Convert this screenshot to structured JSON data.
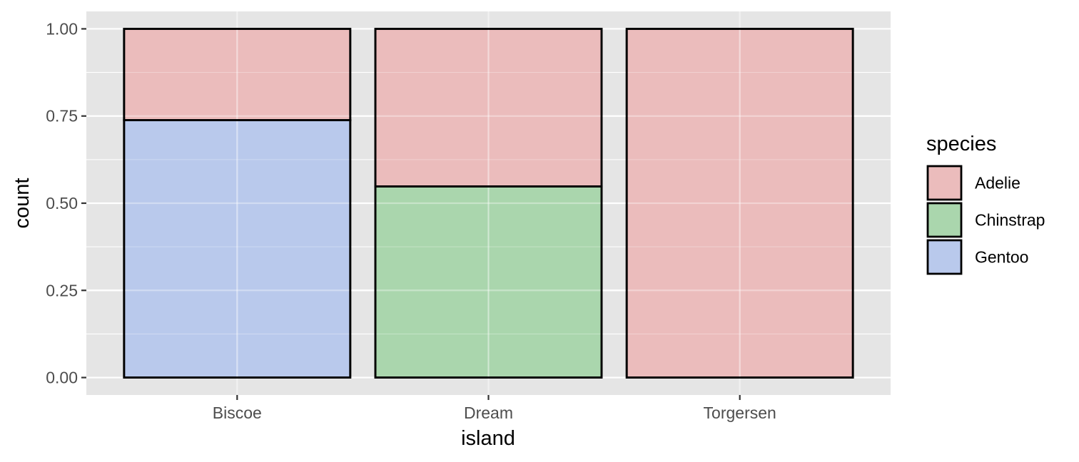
{
  "chart_data": {
    "type": "bar",
    "stacked": true,
    "position": "fill",
    "categories": [
      "Biscoe",
      "Dream",
      "Torgersen"
    ],
    "series": [
      {
        "name": "Adelie",
        "values": [
          0.262,
          0.452,
          1.0
        ]
      },
      {
        "name": "Chinstrap",
        "values": [
          0.0,
          0.548,
          0.0
        ]
      },
      {
        "name": "Gentoo",
        "values": [
          0.738,
          0.0,
          0.0
        ]
      }
    ],
    "xlabel": "island",
    "ylabel": "count",
    "ylim": [
      -0.05,
      1.05
    ],
    "yticks": [
      0.0,
      0.25,
      0.5,
      0.75,
      1.0
    ],
    "ytick_labels": [
      "0.00",
      "0.25",
      "0.50",
      "0.75",
      "1.00"
    ],
    "grid": true,
    "legend": {
      "title": "species",
      "position": "right",
      "items": [
        "Adelie",
        "Chinstrap",
        "Gentoo"
      ]
    },
    "stack_order": [
      "Gentoo",
      "Chinstrap",
      "Adelie"
    ],
    "colors": {
      "Adelie": "#ebbcbc",
      "Chinstrap": "#aad6ad",
      "Gentoo": "#b9c9ec",
      "panel": "#e5e5e5",
      "grid": "#ffffff",
      "outline": "#000000"
    }
  }
}
